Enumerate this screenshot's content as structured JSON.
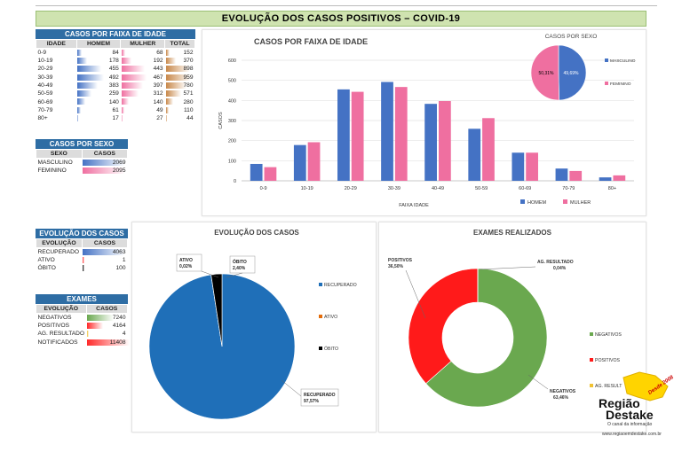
{
  "header": {
    "title": "EVOLUÇÃO DOS  CASOS POSITIVOS – COVID-19"
  },
  "colors": {
    "homem": "#4472c4",
    "mulher": "#ef6fa0",
    "recuperado": "#1f6fb8",
    "ativo": "#e46c0a",
    "obito": "#000000",
    "negativos": "#6aa84f",
    "positivos": "#ff1a1a",
    "ag_resultado": "#f1c232",
    "table_header": "#2e6da4",
    "title_band": "#cfe3b0"
  },
  "age_table": {
    "title": "CASOS POR FAIXA DE IDADE",
    "headers": [
      "IDADE",
      "HOMEM",
      "MULHER",
      "TOTAL"
    ],
    "rows": [
      {
        "idade": "0-9",
        "homem": "84",
        "mulher": "68",
        "total": "152"
      },
      {
        "idade": "10-19",
        "homem": "178",
        "mulher": "192",
        "total": "370"
      },
      {
        "idade": "20-29",
        "homem": "455",
        "mulher": "443",
        "total": "898"
      },
      {
        "idade": "30-39",
        "homem": "492",
        "mulher": "467",
        "total": "959"
      },
      {
        "idade": "40-49",
        "homem": "383",
        "mulher": "397",
        "total": "780"
      },
      {
        "idade": "50-59",
        "homem": "259",
        "mulher": "312",
        "total": "571"
      },
      {
        "idade": "60-69",
        "homem": "140",
        "mulher": "140",
        "total": "280"
      },
      {
        "idade": "70-79",
        "homem": "61",
        "mulher": "49",
        "total": "110"
      },
      {
        "idade": "80+",
        "homem": "17",
        "mulher": "27",
        "total": "44"
      }
    ]
  },
  "sex_table": {
    "title": "CASOS POR SEXO",
    "headers": [
      "SEXO",
      "CASOS"
    ],
    "rows": [
      {
        "label": "MASCULINO",
        "value": "2069"
      },
      {
        "label": "FEMININO",
        "value": "2095"
      }
    ]
  },
  "evol_table": {
    "title": "EVOLUÇÃO DOS CASOS",
    "headers": [
      "EVOLUÇÃO",
      "CASOS"
    ],
    "rows": [
      {
        "label": "RECUPERADO",
        "value": "4063"
      },
      {
        "label": "ATIVO",
        "value": "1"
      },
      {
        "label": "ÓBITO",
        "value": "100"
      }
    ]
  },
  "exam_table": {
    "title": "EXAMES",
    "headers": [
      "EVOLUÇÃO",
      "CASOS"
    ],
    "rows": [
      {
        "label": "NEGATIVOS",
        "value": "7240"
      },
      {
        "label": "POSITIVOS",
        "value": "4164"
      },
      {
        "label": "AG. RESULTADO",
        "value": "4"
      },
      {
        "label": "NOTIFICADOS",
        "value": "11408"
      }
    ]
  },
  "logo": {
    "line1": "Região",
    "line2": "Destake",
    "tagline": "O canal da informação",
    "badge": "Desde 2008",
    "url": "www.regiaoemdestake.com.br"
  },
  "chart_data": [
    {
      "type": "bar",
      "title": "CASOS POR FAIXA DE IDADE",
      "xlabel": "FAIXA IDADE",
      "ylabel": "CASOS",
      "categories": [
        "0-9",
        "10-19",
        "20-29",
        "30-39",
        "40-49",
        "50-59",
        "60-69",
        "70-79",
        "80+"
      ],
      "series": [
        {
          "name": "HOMEM",
          "values": [
            84,
            178,
            455,
            492,
            383,
            259,
            140,
            61,
            17
          ]
        },
        {
          "name": "MULHER",
          "values": [
            68,
            192,
            443,
            467,
            397,
            312,
            140,
            49,
            27
          ]
        }
      ],
      "ylim": [
        0,
        600
      ],
      "yticks": [
        0,
        100,
        200,
        300,
        400,
        500,
        600
      ],
      "grid": true,
      "legend": "bottom-right"
    },
    {
      "type": "pie",
      "title": "CASOS POR SEXO",
      "labels": [
        "MASCULINO",
        "FEMININO"
      ],
      "values": [
        49.69,
        50.31
      ],
      "data_labels": [
        "49,69%",
        "50,31%"
      ],
      "legend": "right"
    },
    {
      "type": "pie",
      "title": "EVOLUÇÃO DOS CASOS",
      "labels": [
        "RECUPERADO",
        "ATIVO",
        "ÓBITO"
      ],
      "values": [
        97.57,
        0.02,
        2.4
      ],
      "data_labels": [
        "97,57%",
        "0,02%",
        "2,40%"
      ],
      "legend": "right"
    },
    {
      "type": "pie",
      "title": "EXAMES REALIZADOS",
      "donut": true,
      "labels": [
        "NEGATIVOS",
        "POSITIVOS",
        "AG. RESULTADO"
      ],
      "legend_labels": [
        "NEGATIVOS",
        "POSITIVOS",
        "AG. RESULT"
      ],
      "values": [
        63.46,
        36.5,
        0.04
      ],
      "data_labels": [
        "63,46%",
        "36,50%",
        "0,04%"
      ],
      "legend": "right"
    }
  ]
}
